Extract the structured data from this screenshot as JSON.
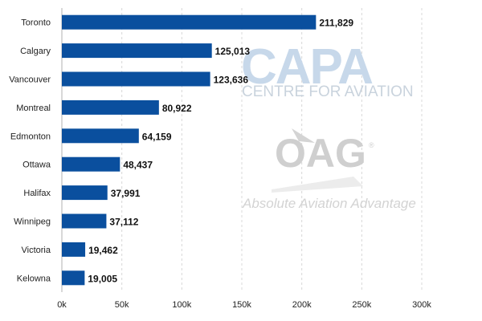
{
  "chart_data": {
    "type": "bar",
    "orientation": "horizontal",
    "categories": [
      "Toronto",
      "Calgary",
      "Vancouver",
      "Montreal",
      "Edmonton",
      "Ottawa",
      "Halifax",
      "Winnipeg",
      "Victoria",
      "Kelowna"
    ],
    "values": [
      211829,
      125013,
      123636,
      80922,
      64159,
      48437,
      37991,
      37112,
      19462,
      19005
    ],
    "value_labels": [
      "211,829",
      "125,013",
      "123,636",
      "80,922",
      "64,159",
      "48,437",
      "37,991",
      "37,112",
      "19,462",
      "19,005"
    ],
    "x_ticks": [
      0,
      50000,
      100000,
      150000,
      200000,
      250000,
      300000
    ],
    "x_tick_labels": [
      "0k",
      "50k",
      "100k",
      "150k",
      "200k",
      "250k",
      "300k"
    ],
    "xlim": [
      0,
      300000
    ],
    "title": "",
    "xlabel": "",
    "ylabel": "",
    "grid": "vertical dashed",
    "bar_color": "#0a4f9e"
  },
  "watermarks": {
    "capa": "CAPA",
    "capa_sub": "CENTRE FOR AVIATION",
    "oag": "OAG",
    "oag_mark": "®",
    "oag_sub": "Absolute Aviation Advantage"
  }
}
